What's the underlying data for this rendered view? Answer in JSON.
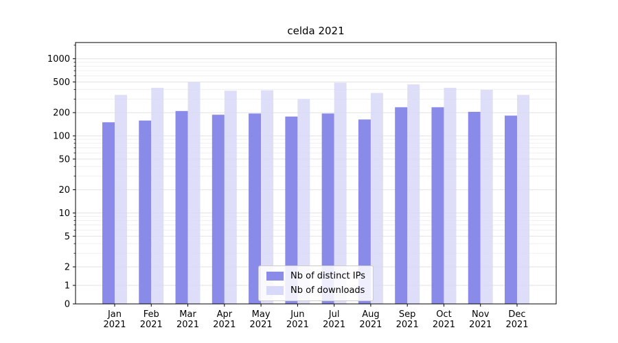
{
  "figure": {
    "title": "celda 2021",
    "background": "#ffffff"
  },
  "chart_data": {
    "type": "bar",
    "title": "celda 2021",
    "categories": [
      "Jan 2021",
      "Feb 2021",
      "Mar 2021",
      "Apr 2021",
      "May 2021",
      "Jun 2021",
      "Jul 2021",
      "Aug 2021",
      "Sep 2021",
      "Oct 2021",
      "Nov 2021",
      "Dec 2021"
    ],
    "series": [
      {
        "name": "Nb of distinct IPs",
        "color": "#8a8ae8",
        "values": [
          150,
          158,
          210,
          188,
          195,
          178,
          195,
          163,
          235,
          235,
          205,
          183
        ]
      },
      {
        "name": "Nb of downloads",
        "color": "#d8d8f8",
        "values": [
          340,
          420,
          500,
          385,
          390,
          300,
          490,
          360,
          465,
          420,
          395,
          340
        ]
      }
    ],
    "y_scale": "symlog",
    "y_ticks": [
      0,
      1,
      2,
      5,
      10,
      20,
      50,
      100,
      200,
      500,
      1000
    ],
    "y_minor_ticks": [
      3,
      4,
      6,
      7,
      8,
      9,
      30,
      40,
      60,
      70,
      80,
      90,
      300,
      400,
      600,
      700,
      800,
      900,
      1500
    ],
    "ylim": [
      0,
      1600
    ],
    "grid": true,
    "legend": {
      "position": "lower center",
      "entries": [
        "Nb of distinct IPs",
        "Nb of downloads"
      ]
    },
    "colors": {
      "spine": "#000000",
      "major_grid": "#e2e2e2",
      "minor_grid": "#efefef",
      "tick_label": "#000000"
    }
  }
}
